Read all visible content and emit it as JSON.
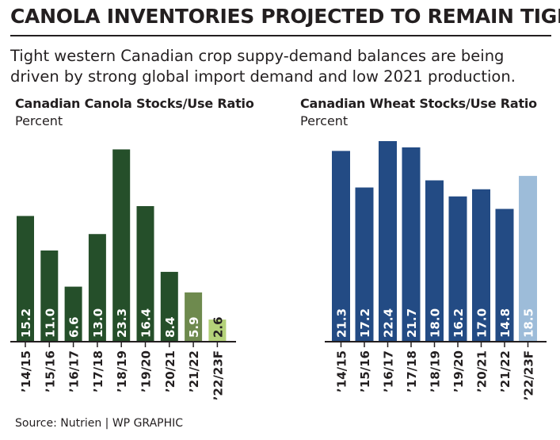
{
  "headline": "CANOLA INVENTORIES PROJECTED TO REMAIN TIGHT",
  "subtitle": "Tight western Canadian crop suppy-demand balances are being driven by strong global import demand and low 2021 production.",
  "source": "Source: Nutrien  |  WP GRAPHIC",
  "chart_data": [
    {
      "type": "bar",
      "title": "Canadian Canola Stocks/Use Ratio",
      "ylabel": "Percent",
      "categories": [
        "’14/15",
        "’15/16",
        "’16/17",
        "’17/18",
        "’18/19",
        "’19/20",
        "’20/21",
        "’21/22",
        "’22/23F"
      ],
      "values": [
        15.2,
        11.0,
        6.6,
        13.0,
        23.3,
        16.4,
        8.4,
        5.9,
        2.6
      ],
      "value_labels": [
        "15.2",
        "11.0",
        "6.6",
        "13.0",
        "23.3",
        "16.4",
        "8.4",
        "5.9",
        "2.6"
      ],
      "ylim": [
        0,
        24.5
      ],
      "grid": false,
      "colors": [
        "#254f2a",
        "#254f2a",
        "#254f2a",
        "#254f2a",
        "#254f2a",
        "#254f2a",
        "#254f2a",
        "#6e8a4e",
        "#b4d27a"
      ]
    },
    {
      "type": "bar",
      "title": "Canadian Wheat Stocks/Use Ratio",
      "ylabel": "Percent",
      "categories": [
        "’14/15",
        "’15/16",
        "’16/17",
        "’17/18",
        "’18/19",
        "’19/20",
        "’20/21",
        "’21/22",
        "’22/23F"
      ],
      "values": [
        21.3,
        17.2,
        22.4,
        21.7,
        18.0,
        16.2,
        17.0,
        14.8,
        18.5
      ],
      "value_labels": [
        "21.3",
        "17.2",
        "22.4",
        "21.7",
        "18.0",
        "16.2",
        "17.0",
        "14.8",
        "18.5"
      ],
      "ylim": [
        0,
        23.2
      ],
      "grid": false,
      "colors": [
        "#234b84",
        "#234b84",
        "#234b84",
        "#234b84",
        "#234b84",
        "#234b84",
        "#234b84",
        "#234b84",
        "#9dbcd9"
      ]
    }
  ]
}
